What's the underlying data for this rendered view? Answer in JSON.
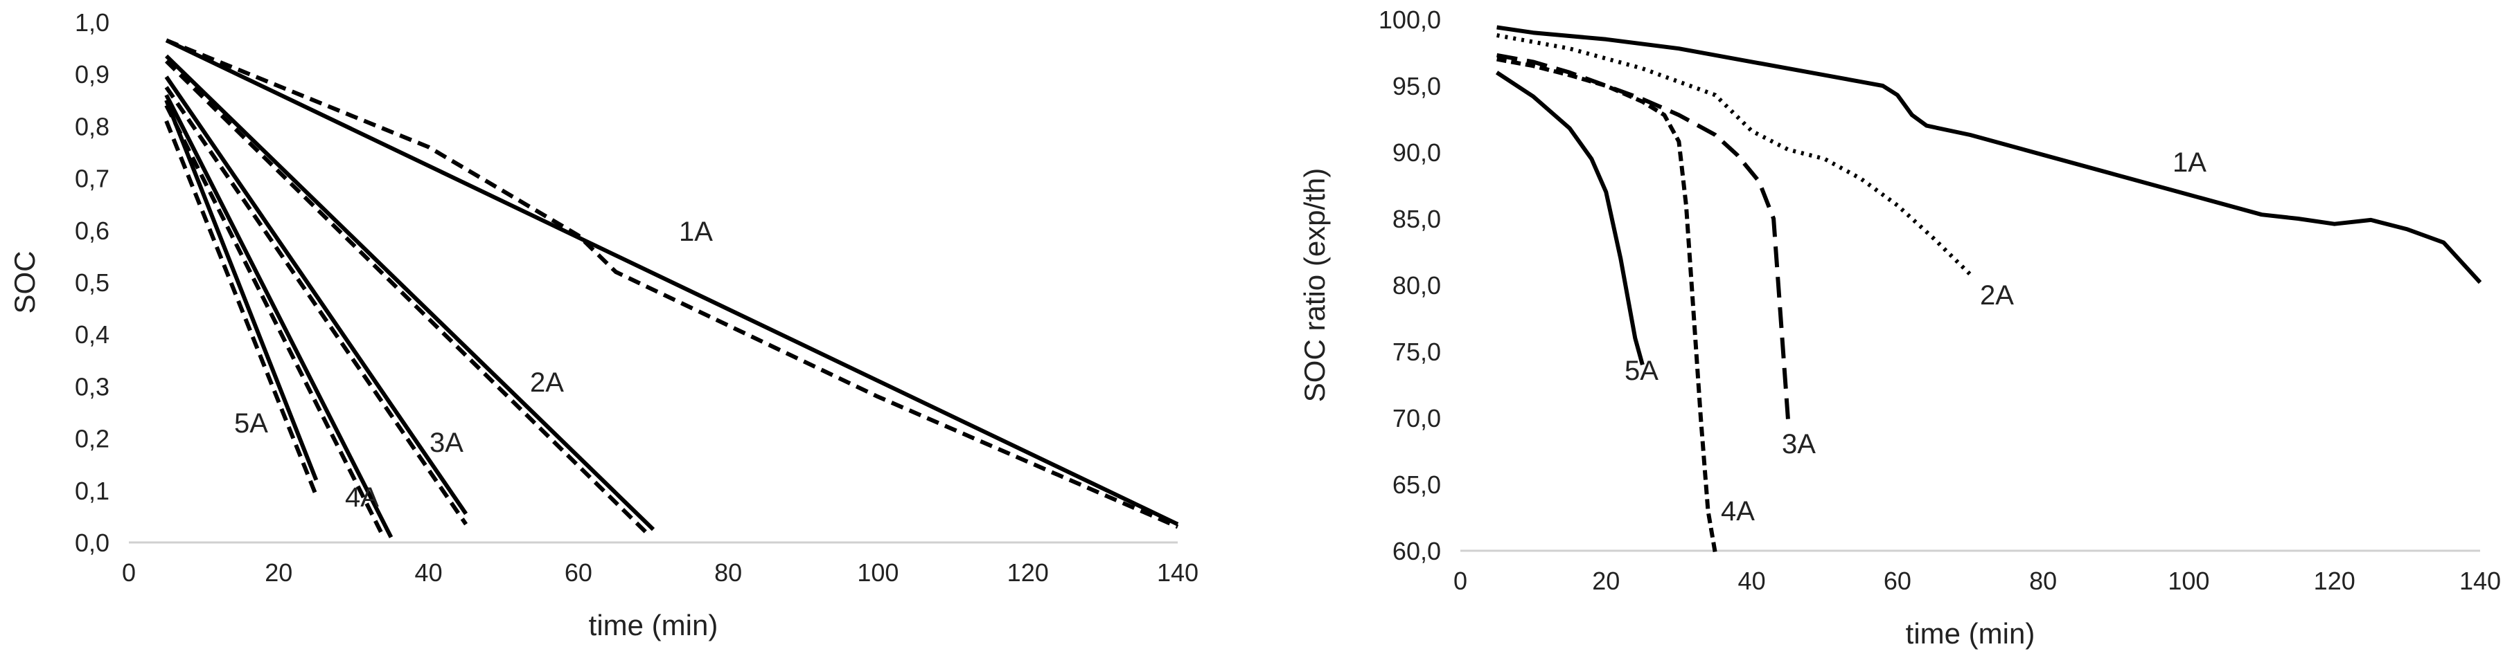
{
  "chart_data": [
    {
      "type": "line",
      "xlabel": "time (min)",
      "ylabel": "SOC",
      "xlim": [
        0,
        140
      ],
      "ylim": [
        0,
        1
      ],
      "xticks": [
        "0",
        "20",
        "40",
        "60",
        "80",
        "100",
        "120",
        "140"
      ],
      "yticks": [
        "0,0",
        "0,1",
        "0,2",
        "0,3",
        "0,4",
        "0,5",
        "0,6",
        "0,7",
        "0,8",
        "0,9",
        "1,0"
      ],
      "grid": false,
      "series_labels": [
        "1A",
        "2A",
        "3A",
        "4A",
        "5A"
      ],
      "series": [
        {
          "label_ref": "1A",
          "style": "solid",
          "points": [
            [
              5,
              0.965
            ],
            [
              140,
              0.035
            ]
          ]
        },
        {
          "label_ref": "1A",
          "style": "dashed",
          "points": [
            [
              5,
              0.965
            ],
            [
              40,
              0.76
            ],
            [
              60,
              0.59
            ],
            [
              65,
              0.52
            ],
            [
              100,
              0.28
            ],
            [
              140,
              0.03
            ]
          ]
        },
        {
          "label_ref": "2A",
          "style": "solid",
          "points": [
            [
              5,
              0.935
            ],
            [
              70,
              0.025
            ]
          ]
        },
        {
          "label_ref": "2A",
          "style": "dashed",
          "points": [
            [
              5,
              0.925
            ],
            [
              69,
              0.02
            ]
          ]
        },
        {
          "label_ref": "3A",
          "style": "solid",
          "points": [
            [
              5,
              0.895
            ],
            [
              45,
              0.055
            ]
          ]
        },
        {
          "label_ref": "3A",
          "style": "dashed",
          "points": [
            [
              5,
              0.875
            ],
            [
              45,
              0.035
            ]
          ]
        },
        {
          "label_ref": "4A",
          "style": "solid",
          "points": [
            [
              5,
              0.86
            ],
            [
              35,
              0.01
            ]
          ]
        },
        {
          "label_ref": "4A",
          "style": "dashed",
          "points": [
            [
              5,
              0.84
            ],
            [
              34,
              0.01
            ]
          ]
        },
        {
          "label_ref": "5A",
          "style": "solid",
          "points": [
            [
              5,
              0.85
            ],
            [
              25,
              0.12
            ]
          ]
        },
        {
          "label_ref": "5A",
          "style": "dashed",
          "points": [
            [
              5,
              0.81
            ],
            [
              25,
              0.09
            ]
          ]
        }
      ]
    },
    {
      "type": "line",
      "xlabel": "time (min)",
      "ylabel": "SOC ratio (exp/th)",
      "xlim": [
        0,
        140
      ],
      "ylim": [
        60,
        100
      ],
      "xticks": [
        "0",
        "20",
        "40",
        "60",
        "80",
        "100",
        "120",
        "140"
      ],
      "yticks": [
        "60,0",
        "65,0",
        "70,0",
        "75,0",
        "80,0",
        "85,0",
        "90,0",
        "95,0",
        "100,0"
      ],
      "grid": false,
      "series": [
        {
          "name": "1A",
          "style": "solid",
          "points": [
            [
              5,
              99.4
            ],
            [
              10,
              99.0
            ],
            [
              20,
              98.5
            ],
            [
              30,
              97.8
            ],
            [
              40,
              96.8
            ],
            [
              50,
              95.8
            ],
            [
              55,
              95.3
            ],
            [
              58,
              95.0
            ],
            [
              60,
              94.3
            ],
            [
              62,
              92.8
            ],
            [
              64,
              92.0
            ],
            [
              70,
              91.3
            ],
            [
              80,
              89.8
            ],
            [
              90,
              88.3
            ],
            [
              100,
              86.8
            ],
            [
              110,
              85.3
            ],
            [
              115,
              85.0
            ],
            [
              120,
              84.6
            ],
            [
              125,
              84.9
            ],
            [
              130,
              84.2
            ],
            [
              135,
              83.2
            ],
            [
              140,
              80.2
            ]
          ]
        },
        {
          "name": "2A",
          "style": "dotted",
          "points": [
            [
              5,
              98.8
            ],
            [
              15,
              97.8
            ],
            [
              25,
              96.3
            ],
            [
              35,
              94.3
            ],
            [
              40,
              91.6
            ],
            [
              45,
              90.2
            ],
            [
              50,
              89.5
            ],
            [
              55,
              88.0
            ],
            [
              60,
              86.0
            ],
            [
              65,
              83.5
            ],
            [
              70,
              80.8
            ]
          ]
        },
        {
          "name": "3A",
          "style": "dashed-long",
          "points": [
            [
              5,
              97.3
            ],
            [
              10,
              96.8
            ],
            [
              15,
              96.0
            ],
            [
              20,
              95.0
            ],
            [
              25,
              94.0
            ],
            [
              30,
              92.8
            ],
            [
              35,
              91.3
            ],
            [
              38,
              89.8
            ],
            [
              41,
              87.8
            ],
            [
              43,
              85.0
            ],
            [
              45,
              69.8
            ]
          ]
        },
        {
          "name": "4A",
          "style": "dashed-short",
          "points": [
            [
              5,
              97.0
            ],
            [
              10,
              96.5
            ],
            [
              15,
              95.8
            ],
            [
              20,
              95.0
            ],
            [
              25,
              93.8
            ],
            [
              28,
              92.8
            ],
            [
              30,
              90.8
            ],
            [
              31,
              86.0
            ],
            [
              32,
              78.0
            ],
            [
              33,
              70.0
            ],
            [
              34,
              63.0
            ],
            [
              35,
              59.8
            ]
          ]
        },
        {
          "name": "5A",
          "style": "solid",
          "points": [
            [
              5,
              96.0
            ],
            [
              10,
              94.2
            ],
            [
              15,
              91.8
            ],
            [
              18,
              89.5
            ],
            [
              20,
              87.0
            ],
            [
              22,
              82.0
            ],
            [
              24,
              76.0
            ],
            [
              25,
              74.0
            ]
          ]
        }
      ]
    }
  ]
}
